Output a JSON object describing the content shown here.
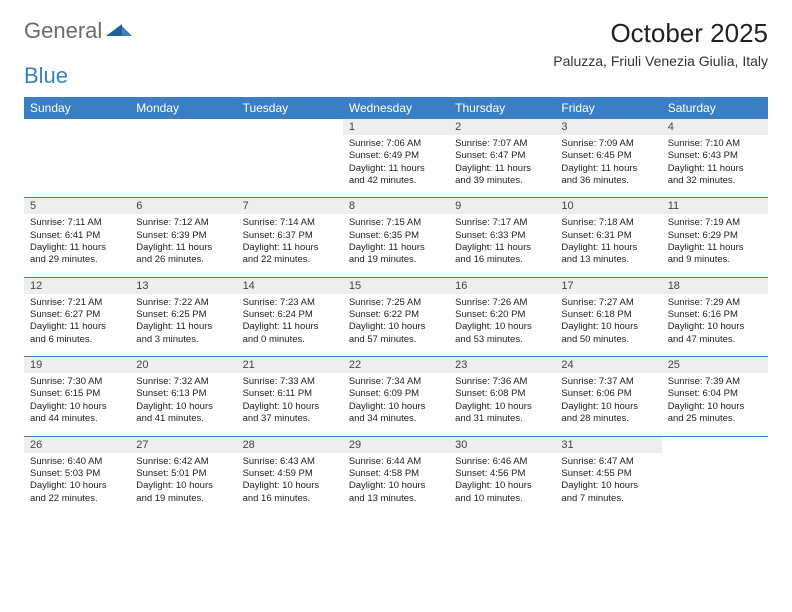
{
  "brand": {
    "general": "General",
    "blue": "Blue"
  },
  "title": "October 2025",
  "subtitle": "Paluzza, Friuli Venezia Giulia, Italy",
  "colors": {
    "header_bg": "#3a7fc4",
    "header_text": "#ffffff",
    "daynum_bg": "#eeeeee",
    "week_border": "#3a7fc4",
    "text": "#222222",
    "brand_gray": "#6b6b6b",
    "brand_blue": "#3a7fc4"
  },
  "day_headers": [
    "Sunday",
    "Monday",
    "Tuesday",
    "Wednesday",
    "Thursday",
    "Friday",
    "Saturday"
  ],
  "weeks": [
    [
      null,
      null,
      null,
      {
        "n": "1",
        "sr": "7:06 AM",
        "ss": "6:49 PM",
        "dl": "11 hours and 42 minutes."
      },
      {
        "n": "2",
        "sr": "7:07 AM",
        "ss": "6:47 PM",
        "dl": "11 hours and 39 minutes."
      },
      {
        "n": "3",
        "sr": "7:09 AM",
        "ss": "6:45 PM",
        "dl": "11 hours and 36 minutes."
      },
      {
        "n": "4",
        "sr": "7:10 AM",
        "ss": "6:43 PM",
        "dl": "11 hours and 32 minutes."
      }
    ],
    [
      {
        "n": "5",
        "sr": "7:11 AM",
        "ss": "6:41 PM",
        "dl": "11 hours and 29 minutes."
      },
      {
        "n": "6",
        "sr": "7:12 AM",
        "ss": "6:39 PM",
        "dl": "11 hours and 26 minutes."
      },
      {
        "n": "7",
        "sr": "7:14 AM",
        "ss": "6:37 PM",
        "dl": "11 hours and 22 minutes."
      },
      {
        "n": "8",
        "sr": "7:15 AM",
        "ss": "6:35 PM",
        "dl": "11 hours and 19 minutes."
      },
      {
        "n": "9",
        "sr": "7:17 AM",
        "ss": "6:33 PM",
        "dl": "11 hours and 16 minutes."
      },
      {
        "n": "10",
        "sr": "7:18 AM",
        "ss": "6:31 PM",
        "dl": "11 hours and 13 minutes."
      },
      {
        "n": "11",
        "sr": "7:19 AM",
        "ss": "6:29 PM",
        "dl": "11 hours and 9 minutes."
      }
    ],
    [
      {
        "n": "12",
        "sr": "7:21 AM",
        "ss": "6:27 PM",
        "dl": "11 hours and 6 minutes."
      },
      {
        "n": "13",
        "sr": "7:22 AM",
        "ss": "6:25 PM",
        "dl": "11 hours and 3 minutes."
      },
      {
        "n": "14",
        "sr": "7:23 AM",
        "ss": "6:24 PM",
        "dl": "11 hours and 0 minutes."
      },
      {
        "n": "15",
        "sr": "7:25 AM",
        "ss": "6:22 PM",
        "dl": "10 hours and 57 minutes."
      },
      {
        "n": "16",
        "sr": "7:26 AM",
        "ss": "6:20 PM",
        "dl": "10 hours and 53 minutes."
      },
      {
        "n": "17",
        "sr": "7:27 AM",
        "ss": "6:18 PM",
        "dl": "10 hours and 50 minutes."
      },
      {
        "n": "18",
        "sr": "7:29 AM",
        "ss": "6:16 PM",
        "dl": "10 hours and 47 minutes."
      }
    ],
    [
      {
        "n": "19",
        "sr": "7:30 AM",
        "ss": "6:15 PM",
        "dl": "10 hours and 44 minutes."
      },
      {
        "n": "20",
        "sr": "7:32 AM",
        "ss": "6:13 PM",
        "dl": "10 hours and 41 minutes."
      },
      {
        "n": "21",
        "sr": "7:33 AM",
        "ss": "6:11 PM",
        "dl": "10 hours and 37 minutes."
      },
      {
        "n": "22",
        "sr": "7:34 AM",
        "ss": "6:09 PM",
        "dl": "10 hours and 34 minutes."
      },
      {
        "n": "23",
        "sr": "7:36 AM",
        "ss": "6:08 PM",
        "dl": "10 hours and 31 minutes."
      },
      {
        "n": "24",
        "sr": "7:37 AM",
        "ss": "6:06 PM",
        "dl": "10 hours and 28 minutes."
      },
      {
        "n": "25",
        "sr": "7:39 AM",
        "ss": "6:04 PM",
        "dl": "10 hours and 25 minutes."
      }
    ],
    [
      {
        "n": "26",
        "sr": "6:40 AM",
        "ss": "5:03 PM",
        "dl": "10 hours and 22 minutes."
      },
      {
        "n": "27",
        "sr": "6:42 AM",
        "ss": "5:01 PM",
        "dl": "10 hours and 19 minutes."
      },
      {
        "n": "28",
        "sr": "6:43 AM",
        "ss": "4:59 PM",
        "dl": "10 hours and 16 minutes."
      },
      {
        "n": "29",
        "sr": "6:44 AM",
        "ss": "4:58 PM",
        "dl": "10 hours and 13 minutes."
      },
      {
        "n": "30",
        "sr": "6:46 AM",
        "ss": "4:56 PM",
        "dl": "10 hours and 10 minutes."
      },
      {
        "n": "31",
        "sr": "6:47 AM",
        "ss": "4:55 PM",
        "dl": "10 hours and 7 minutes."
      },
      null
    ]
  ],
  "labels": {
    "sunrise": "Sunrise:",
    "sunset": "Sunset:",
    "daylight": "Daylight:"
  }
}
